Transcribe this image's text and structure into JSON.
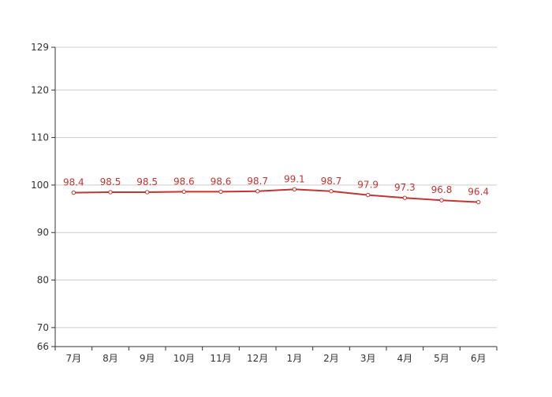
{
  "chart_data": {
    "type": "line",
    "categories": [
      "7月",
      "8月",
      "9月",
      "10月",
      "11月",
      "12月",
      "1月",
      "2月",
      "3月",
      "4月",
      "5月",
      "6月"
    ],
    "series": [
      {
        "values": [
          98.4,
          98.5,
          98.5,
          98.6,
          98.6,
          98.7,
          99.1,
          98.7,
          97.9,
          97.3,
          96.8,
          96.4
        ],
        "color": "#c23531"
      }
    ],
    "y_ticks": [
      66,
      70,
      80,
      90,
      100,
      110,
      120,
      129
    ],
    "ylim": [
      66,
      129
    ],
    "grid": true,
    "data_labels": true
  }
}
